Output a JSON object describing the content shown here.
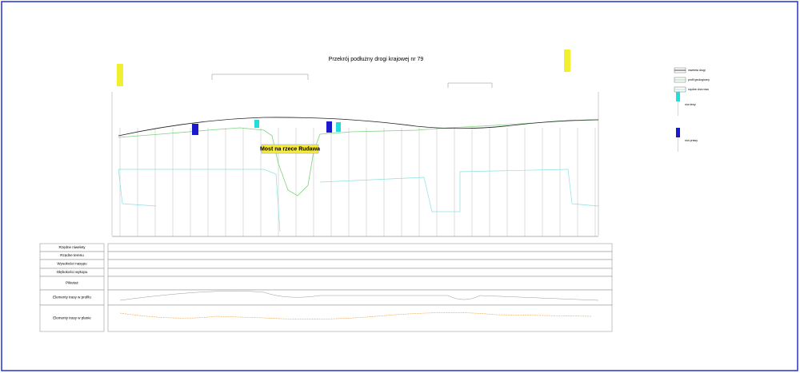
{
  "header": {
    "title": "Przekrój podłużny drogi krajowej nr 79"
  },
  "annotations": {
    "bridge": "Most na rzece Rudawa"
  },
  "table": {
    "rows": [
      "Rzędne niwelety",
      "Rzędne terenu",
      "Wysokości nasypu",
      "Głębokości wykopu",
      "Pikietaż",
      "Elementy trasy w profilu",
      "Elementy trasy w planie"
    ]
  },
  "legend": {
    "items": [
      "niweleta drogi",
      "profil geologiczny",
      "rzędne dna rowu",
      "rów lewy",
      "rów prawy"
    ]
  }
}
